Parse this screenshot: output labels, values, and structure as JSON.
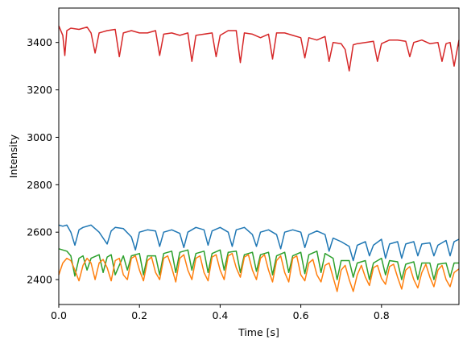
{
  "chart_data": {
    "type": "line",
    "xlabel": "Time [s]",
    "ylabel": "Intensity",
    "xlim": [
      0,
      0.992
    ],
    "ylim": [
      2295,
      3545
    ],
    "x_ticks": [
      0.0,
      0.2,
      0.4,
      0.6,
      0.8
    ],
    "x_tick_labels": [
      "0.0",
      "0.2",
      "0.4",
      "0.6",
      "0.8"
    ],
    "y_ticks": [
      2400,
      2600,
      2800,
      3000,
      3200,
      3400
    ],
    "y_tick_labels": [
      "2400",
      "2600",
      "2800",
      "3000",
      "3200",
      "3400"
    ],
    "grid": false,
    "legend": "none",
    "series": [
      {
        "color": "#d62728",
        "x": [
          0.0,
          0.01,
          0.015,
          0.02,
          0.03,
          0.05,
          0.07,
          0.08,
          0.09,
          0.1,
          0.12,
          0.14,
          0.15,
          0.16,
          0.18,
          0.2,
          0.22,
          0.24,
          0.25,
          0.26,
          0.28,
          0.3,
          0.32,
          0.33,
          0.34,
          0.36,
          0.38,
          0.39,
          0.4,
          0.42,
          0.44,
          0.45,
          0.46,
          0.48,
          0.5,
          0.52,
          0.53,
          0.54,
          0.56,
          0.58,
          0.6,
          0.61,
          0.62,
          0.64,
          0.66,
          0.67,
          0.68,
          0.7,
          0.71,
          0.72,
          0.73,
          0.74,
          0.76,
          0.78,
          0.79,
          0.8,
          0.82,
          0.84,
          0.86,
          0.87,
          0.88,
          0.9,
          0.92,
          0.94,
          0.95,
          0.96,
          0.97,
          0.98,
          0.992
        ],
        "y": [
          3470,
          3430,
          3345,
          3450,
          3460,
          3455,
          3465,
          3440,
          3355,
          3440,
          3450,
          3455,
          3340,
          3440,
          3450,
          3440,
          3440,
          3450,
          3345,
          3435,
          3440,
          3430,
          3440,
          3320,
          3430,
          3435,
          3440,
          3340,
          3430,
          3450,
          3450,
          3315,
          3440,
          3435,
          3420,
          3435,
          3330,
          3440,
          3440,
          3430,
          3420,
          3335,
          3420,
          3410,
          3425,
          3320,
          3400,
          3395,
          3370,
          3280,
          3390,
          3395,
          3400,
          3405,
          3320,
          3395,
          3410,
          3410,
          3405,
          3340,
          3400,
          3410,
          3395,
          3400,
          3320,
          3395,
          3400,
          3300,
          3410
        ]
      },
      {
        "color": "#1f77b4",
        "x": [
          0.0,
          0.01,
          0.02,
          0.03,
          0.04,
          0.05,
          0.06,
          0.08,
          0.1,
          0.12,
          0.13,
          0.14,
          0.16,
          0.18,
          0.19,
          0.2,
          0.22,
          0.24,
          0.25,
          0.26,
          0.28,
          0.3,
          0.31,
          0.32,
          0.34,
          0.36,
          0.37,
          0.38,
          0.4,
          0.42,
          0.43,
          0.44,
          0.46,
          0.48,
          0.49,
          0.5,
          0.52,
          0.54,
          0.55,
          0.56,
          0.58,
          0.6,
          0.61,
          0.62,
          0.64,
          0.66,
          0.67,
          0.68,
          0.7,
          0.72,
          0.73,
          0.74,
          0.76,
          0.77,
          0.78,
          0.8,
          0.81,
          0.82,
          0.84,
          0.85,
          0.86,
          0.88,
          0.89,
          0.9,
          0.92,
          0.93,
          0.94,
          0.96,
          0.97,
          0.98,
          0.992
        ],
        "y": [
          2630,
          2625,
          2630,
          2600,
          2545,
          2610,
          2620,
          2630,
          2600,
          2550,
          2605,
          2620,
          2615,
          2580,
          2525,
          2600,
          2610,
          2605,
          2540,
          2600,
          2610,
          2595,
          2535,
          2600,
          2620,
          2610,
          2545,
          2605,
          2620,
          2600,
          2540,
          2610,
          2620,
          2590,
          2540,
          2600,
          2610,
          2590,
          2530,
          2600,
          2610,
          2600,
          2535,
          2590,
          2605,
          2590,
          2520,
          2575,
          2560,
          2540,
          2480,
          2545,
          2560,
          2500,
          2545,
          2570,
          2490,
          2550,
          2560,
          2490,
          2550,
          2560,
          2500,
          2550,
          2555,
          2500,
          2545,
          2565,
          2500,
          2560,
          2570
        ]
      },
      {
        "color": "#2ca02c",
        "x": [
          0.0,
          0.01,
          0.02,
          0.03,
          0.04,
          0.05,
          0.06,
          0.07,
          0.08,
          0.1,
          0.11,
          0.12,
          0.13,
          0.14,
          0.16,
          0.17,
          0.18,
          0.2,
          0.21,
          0.22,
          0.24,
          0.25,
          0.26,
          0.28,
          0.29,
          0.3,
          0.32,
          0.33,
          0.34,
          0.36,
          0.37,
          0.38,
          0.4,
          0.41,
          0.42,
          0.44,
          0.45,
          0.46,
          0.48,
          0.49,
          0.5,
          0.52,
          0.53,
          0.54,
          0.56,
          0.57,
          0.58,
          0.6,
          0.61,
          0.62,
          0.64,
          0.65,
          0.66,
          0.68,
          0.69,
          0.7,
          0.72,
          0.73,
          0.74,
          0.76,
          0.77,
          0.78,
          0.8,
          0.81,
          0.82,
          0.84,
          0.85,
          0.86,
          0.88,
          0.89,
          0.9,
          0.92,
          0.93,
          0.94,
          0.96,
          0.97,
          0.98,
          0.992
        ],
        "y": [
          2530,
          2525,
          2520,
          2500,
          2415,
          2490,
          2500,
          2440,
          2490,
          2505,
          2430,
          2495,
          2505,
          2420,
          2500,
          2440,
          2500,
          2510,
          2420,
          2500,
          2500,
          2420,
          2510,
          2520,
          2430,
          2515,
          2525,
          2440,
          2510,
          2520,
          2430,
          2510,
          2525,
          2440,
          2515,
          2520,
          2430,
          2505,
          2515,
          2435,
          2505,
          2515,
          2420,
          2500,
          2515,
          2430,
          2500,
          2515,
          2425,
          2505,
          2520,
          2430,
          2510,
          2490,
          2400,
          2480,
          2480,
          2410,
          2470,
          2480,
          2400,
          2470,
          2490,
          2420,
          2480,
          2475,
          2400,
          2465,
          2475,
          2400,
          2470,
          2470,
          2400,
          2465,
          2470,
          2410,
          2470,
          2470
        ]
      },
      {
        "color": "#ff7f0e",
        "x": [
          0.0,
          0.01,
          0.02,
          0.03,
          0.04,
          0.05,
          0.06,
          0.07,
          0.08,
          0.09,
          0.1,
          0.11,
          0.12,
          0.13,
          0.14,
          0.15,
          0.16,
          0.17,
          0.18,
          0.19,
          0.2,
          0.21,
          0.22,
          0.23,
          0.24,
          0.25,
          0.26,
          0.27,
          0.28,
          0.29,
          0.3,
          0.31,
          0.32,
          0.33,
          0.34,
          0.35,
          0.36,
          0.37,
          0.38,
          0.39,
          0.4,
          0.41,
          0.42,
          0.43,
          0.44,
          0.45,
          0.46,
          0.47,
          0.48,
          0.49,
          0.5,
          0.51,
          0.52,
          0.53,
          0.54,
          0.55,
          0.56,
          0.57,
          0.58,
          0.59,
          0.6,
          0.61,
          0.62,
          0.63,
          0.64,
          0.65,
          0.66,
          0.67,
          0.68,
          0.69,
          0.7,
          0.71,
          0.72,
          0.73,
          0.74,
          0.75,
          0.76,
          0.77,
          0.78,
          0.79,
          0.8,
          0.81,
          0.82,
          0.83,
          0.84,
          0.85,
          0.86,
          0.87,
          0.88,
          0.89,
          0.9,
          0.91,
          0.92,
          0.93,
          0.94,
          0.95,
          0.96,
          0.97,
          0.98,
          0.992
        ],
        "y": [
          2420,
          2470,
          2490,
          2480,
          2440,
          2395,
          2460,
          2490,
          2470,
          2400,
          2470,
          2485,
          2450,
          2395,
          2480,
          2490,
          2420,
          2400,
          2490,
          2500,
          2440,
          2395,
          2480,
          2495,
          2430,
          2400,
          2490,
          2500,
          2450,
          2390,
          2490,
          2505,
          2440,
          2400,
          2490,
          2500,
          2430,
          2395,
          2495,
          2505,
          2440,
          2400,
          2500,
          2510,
          2450,
          2410,
          2495,
          2505,
          2440,
          2400,
          2490,
          2505,
          2440,
          2390,
          2480,
          2500,
          2430,
          2390,
          2490,
          2500,
          2420,
          2395,
          2470,
          2485,
          2420,
          2390,
          2460,
          2470,
          2410,
          2350,
          2440,
          2460,
          2400,
          2350,
          2420,
          2460,
          2410,
          2375,
          2450,
          2460,
          2405,
          2380,
          2455,
          2465,
          2410,
          2360,
          2440,
          2455,
          2400,
          2365,
          2430,
          2465,
          2410,
          2370,
          2440,
          2460,
          2400,
          2370,
          2430,
          2445
        ]
      }
    ]
  }
}
